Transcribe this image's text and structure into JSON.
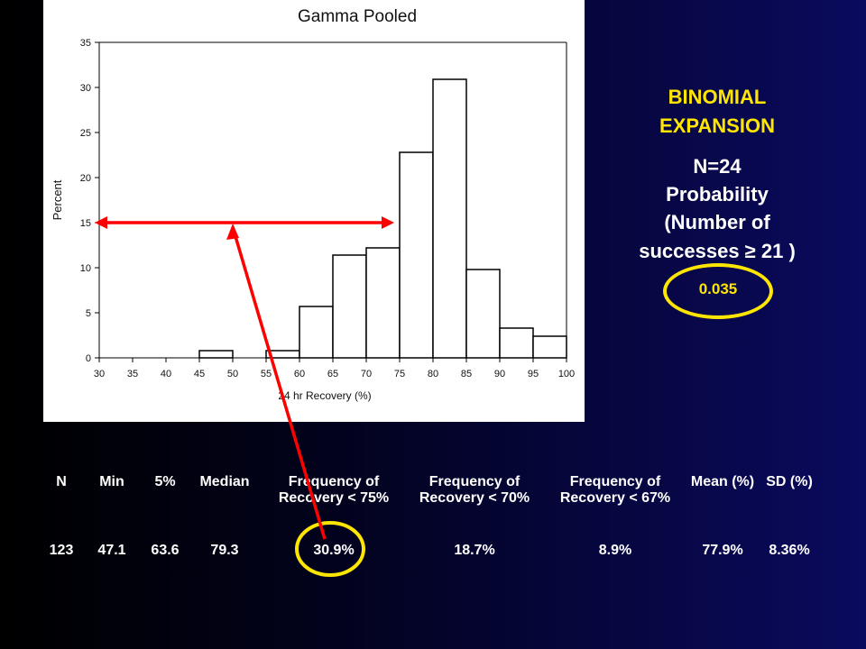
{
  "chart_data": {
    "type": "bar",
    "title": "Gamma Pooled",
    "xlabel": "24 hr Recovery (%)",
    "ylabel": "Percent",
    "x_ticks": [
      30,
      35,
      40,
      45,
      50,
      55,
      60,
      65,
      70,
      75,
      80,
      85,
      90,
      95,
      100
    ],
    "y_ticks": [
      0,
      5,
      10,
      15,
      20,
      25,
      30,
      35
    ],
    "xlim": [
      30,
      100
    ],
    "ylim": [
      0,
      35
    ],
    "bins": [
      {
        "from": 45,
        "to": 50,
        "value": 0.8
      },
      {
        "from": 55,
        "to": 60,
        "value": 0.8
      },
      {
        "from": 60,
        "to": 65,
        "value": 5.7
      },
      {
        "from": 65,
        "to": 70,
        "value": 11.4
      },
      {
        "from": 70,
        "to": 75,
        "value": 12.2
      },
      {
        "from": 75,
        "to": 80,
        "value": 22.8
      },
      {
        "from": 80,
        "to": 85,
        "value": 30.9
      },
      {
        "from": 85,
        "to": 90,
        "value": 9.8
      },
      {
        "from": 90,
        "to": 95,
        "value": 3.3
      },
      {
        "from": 95,
        "to": 100,
        "value": 2.4
      }
    ],
    "annotation_line": {
      "from": 30,
      "to": 75,
      "value": 15
    },
    "colors": {
      "bar_fill": "#ffffff",
      "bar_stroke": "#000000",
      "annotation": "#ff0000"
    }
  },
  "side_panel": {
    "title_line1": "BINOMIAL",
    "title_line2": "EXPANSION",
    "line1": "N=24",
    "line2": "Probability",
    "line3": "(Number of",
    "line4": "successes ≥ 21 )",
    "value": "0.035",
    "highlight_color": "#ffe600"
  },
  "table": {
    "headers": [
      "N",
      "Min",
      "5%",
      "Median",
      "Frequency of Recovery < 75%",
      "Frequency of Recovery < 70%",
      "Frequency of Recovery < 67%",
      "Mean (%)",
      "SD (%)"
    ],
    "row": [
      "123",
      "47.1",
      "63.6",
      "79.3",
      "30.9%",
      "18.7%",
      "8.9%",
      "77.9%",
      "8.36%"
    ]
  }
}
